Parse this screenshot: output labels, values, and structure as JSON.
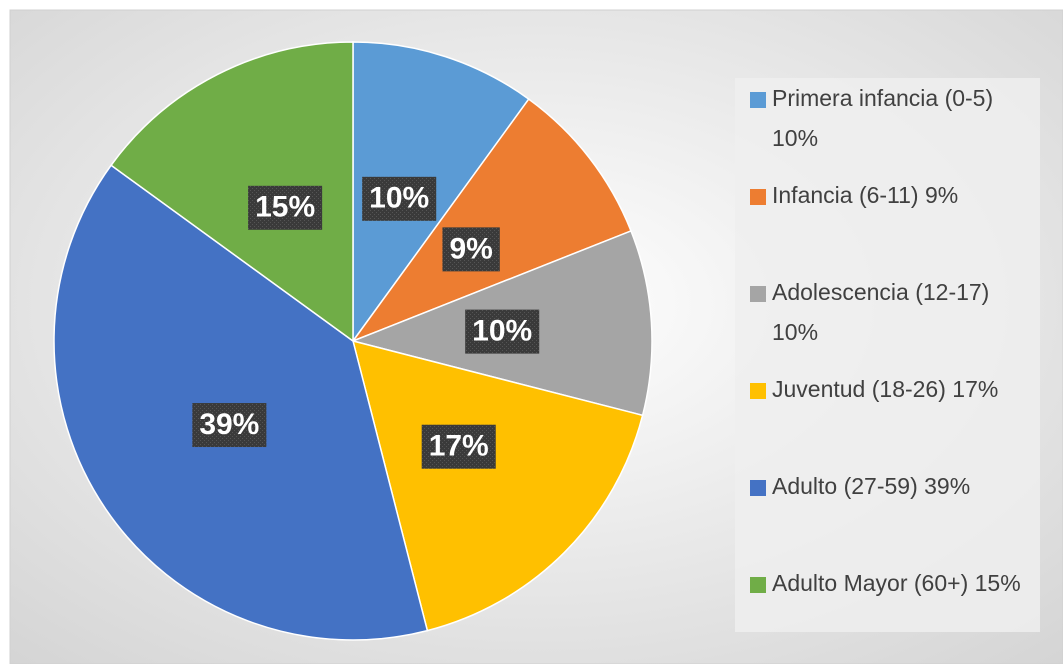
{
  "chart_data": {
    "type": "pie",
    "categories": [
      "Primera infancia (0-5) 10%",
      "Infancia (6-11) 9%",
      "Adolescencia (12-17) 10%",
      "Juventud (18-26) 17%",
      "Adulto (27-59) 39%",
      "Adulto Mayor (60+) 15%"
    ],
    "values": [
      10,
      9,
      10,
      17,
      39,
      15
    ],
    "value_labels": [
      "10%",
      "9%",
      "10%",
      "17%",
      "39%",
      "15%"
    ],
    "colors": [
      "#5b9bd5",
      "#ed7d31",
      "#a5a5a5",
      "#ffc000",
      "#4472c4",
      "#70ad47"
    ],
    "legend": "right"
  }
}
